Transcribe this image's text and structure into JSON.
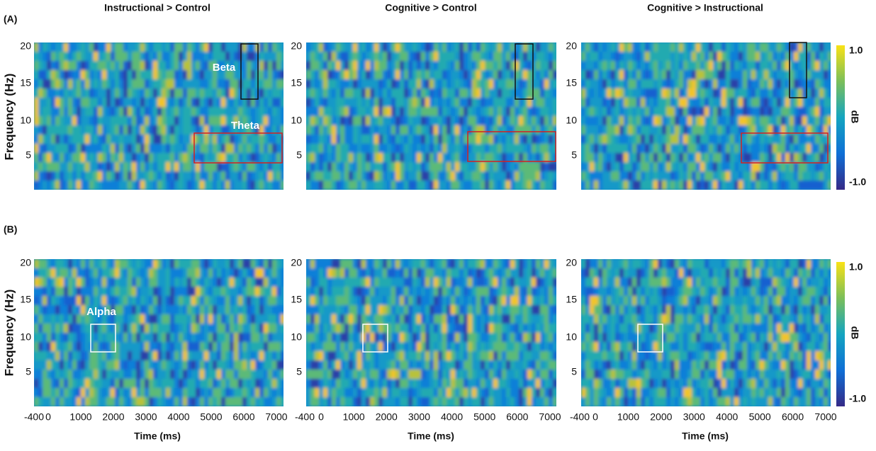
{
  "figure": {
    "panel_labels": [
      "(A)",
      "(B)"
    ],
    "columns": [
      "Instructional > Control",
      "Cognitive > Control",
      "Cognitive > Instructional"
    ],
    "y_axis": {
      "label": "Frequency (Hz)",
      "ticks": [
        "20",
        "15",
        "10",
        "5"
      ]
    },
    "x_axis": {
      "label": "Time (ms)",
      "ticks": [
        "-400",
        "0",
        "1000",
        "2000",
        "3000",
        "4000",
        "5000",
        "6000",
        "7000"
      ]
    },
    "colorbar": {
      "label": "dB",
      "max": "1.0",
      "min": "-1.0"
    },
    "annotations": {
      "beta": "Beta",
      "theta": "Theta",
      "alpha": "Alpha"
    }
  }
}
